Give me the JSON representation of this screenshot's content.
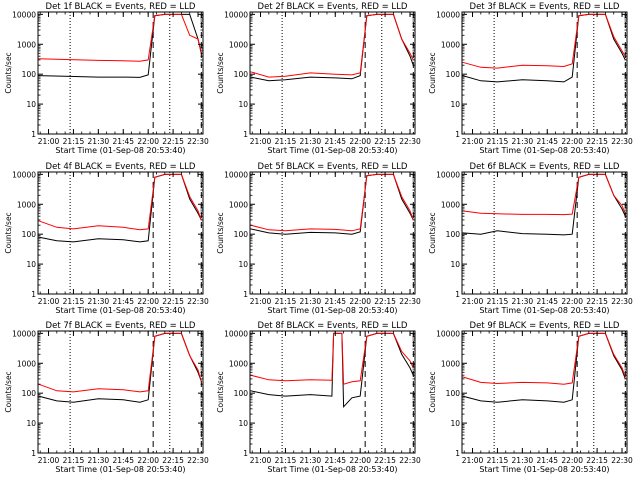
{
  "figure": {
    "colors": {
      "events": "#000000",
      "lld": "#ff0000",
      "axes": "#000000",
      "background": "#ffffff"
    }
  },
  "chart_data": [
    {
      "type": "line",
      "title": "Det 1f BLACK = Events, RED = LLD",
      "xlabel": "Start Time (01-Sep-08 20:53:40)",
      "ylabel": "Counts/sec",
      "x_tick_labels": [
        "21:00",
        "21:15",
        "21:30",
        "21:45",
        "22:00",
        "22:15",
        "22:30"
      ],
      "y_tick_labels": [
        "1",
        "10",
        "100",
        "1000",
        "10000"
      ],
      "y_scale": "log",
      "ylim": [
        1,
        12000
      ],
      "xlim": [
        "20:53:40",
        "22:33:00"
      ],
      "dotted_markers": [
        "21:13",
        "22:13"
      ],
      "dashed_markers": [
        "22:03",
        "22:32"
      ],
      "series": [
        {
          "name": "Events",
          "color": "#000000",
          "x": [
            "20:54",
            "21:10",
            "21:30",
            "21:45",
            "21:55",
            "22:00",
            "22:04",
            "22:10",
            "22:15",
            "22:20",
            "22:25",
            "22:30",
            "22:32"
          ],
          "y": [
            90,
            85,
            80,
            80,
            78,
            95,
            9000,
            10000,
            10000,
            10000,
            10000,
            1500,
            500
          ]
        },
        {
          "name": "LLD",
          "color": "#ff0000",
          "x": [
            "20:54",
            "21:10",
            "21:30",
            "21:45",
            "21:55",
            "22:00",
            "22:04",
            "22:10",
            "22:15",
            "22:20",
            "22:25",
            "22:30",
            "22:32"
          ],
          "y": [
            330,
            310,
            290,
            280,
            270,
            300,
            9000,
            10000,
            10000,
            10000,
            2000,
            1500,
            500
          ]
        }
      ]
    },
    {
      "type": "line",
      "title": "Det 2f BLACK = Events, RED = LLD",
      "xlabel": "Start Time (01-Sep-08 20:53:40)",
      "ylabel": "Counts/sec",
      "x_tick_labels": [
        "21:00",
        "21:15",
        "21:30",
        "21:45",
        "22:00",
        "22:15",
        "22:30"
      ],
      "y_tick_labels": [
        "1",
        "10",
        "100",
        "1000",
        "10000"
      ],
      "y_scale": "log",
      "ylim": [
        1,
        12000
      ],
      "xlim": [
        "20:53:40",
        "22:33:00"
      ],
      "dotted_markers": [
        "21:13",
        "22:13"
      ],
      "dashed_markers": [
        "22:03",
        "22:32"
      ],
      "series": [
        {
          "name": "Events",
          "color": "#000000",
          "x": [
            "20:54",
            "21:05",
            "21:15",
            "21:30",
            "21:45",
            "21:55",
            "22:00",
            "22:04",
            "22:10",
            "22:15",
            "22:20",
            "22:25",
            "22:30",
            "22:32"
          ],
          "y": [
            80,
            60,
            65,
            80,
            75,
            70,
            90,
            9000,
            10000,
            10000,
            10000,
            1500,
            400,
            200
          ]
        },
        {
          "name": "LLD",
          "color": "#ff0000",
          "x": [
            "20:54",
            "21:05",
            "21:15",
            "21:30",
            "21:45",
            "21:55",
            "22:00",
            "22:04",
            "22:10",
            "22:15",
            "22:20",
            "22:25",
            "22:30",
            "22:32"
          ],
          "y": [
            120,
            80,
            85,
            110,
            100,
            95,
            110,
            9000,
            10000,
            10000,
            10000,
            1500,
            500,
            300
          ]
        }
      ]
    },
    {
      "type": "line",
      "title": "Det 3f BLACK = Events, RED = LLD",
      "xlabel": "Start Time (01-Sep-08 20:53:40)",
      "ylabel": "Counts/sec",
      "x_tick_labels": [
        "21:00",
        "21:15",
        "21:30",
        "21:45",
        "22:00",
        "22:15",
        "22:30"
      ],
      "y_tick_labels": [
        "1",
        "10",
        "100",
        "1000",
        "10000"
      ],
      "y_scale": "log",
      "ylim": [
        1,
        12000
      ],
      "xlim": [
        "20:53:40",
        "22:33:00"
      ],
      "dotted_markers": [
        "21:13",
        "22:13"
      ],
      "dashed_markers": [
        "22:03",
        "22:32"
      ],
      "series": [
        {
          "name": "Events",
          "color": "#000000",
          "x": [
            "20:54",
            "21:05",
            "21:15",
            "21:30",
            "21:45",
            "21:55",
            "22:00",
            "22:04",
            "22:10",
            "22:15",
            "22:20",
            "22:25",
            "22:30",
            "22:32"
          ],
          "y": [
            90,
            60,
            55,
            65,
            60,
            55,
            80,
            9000,
            10000,
            10000,
            10000,
            1500,
            500,
            300
          ]
        },
        {
          "name": "LLD",
          "color": "#ff0000",
          "x": [
            "20:54",
            "21:05",
            "21:15",
            "21:30",
            "21:45",
            "21:55",
            "22:00",
            "22:04",
            "22:10",
            "22:15",
            "22:20",
            "22:25",
            "22:30",
            "22:32"
          ],
          "y": [
            250,
            170,
            160,
            200,
            190,
            180,
            220,
            9000,
            10000,
            10000,
            10000,
            1800,
            600,
            400
          ]
        }
      ]
    },
    {
      "type": "line",
      "title": "Det 4f BLACK = Events, RED = LLD",
      "xlabel": "Start Time (01-Sep-08 20:53:40)",
      "ylabel": "Counts/sec",
      "x_tick_labels": [
        "21:00",
        "21:15",
        "21:30",
        "21:45",
        "22:00",
        "22:15",
        "22:30"
      ],
      "y_tick_labels": [
        "1",
        "10",
        "100",
        "1000",
        "10000"
      ],
      "y_scale": "log",
      "ylim": [
        1,
        12000
      ],
      "xlim": [
        "20:53:40",
        "22:33:00"
      ],
      "dotted_markers": [
        "21:13",
        "22:13"
      ],
      "dashed_markers": [
        "22:03",
        "22:32"
      ],
      "series": [
        {
          "name": "Events",
          "color": "#000000",
          "x": [
            "20:54",
            "21:05",
            "21:15",
            "21:30",
            "21:45",
            "21:55",
            "22:00",
            "22:04",
            "22:10",
            "22:15",
            "22:20",
            "22:25",
            "22:30",
            "22:32"
          ],
          "y": [
            80,
            60,
            55,
            70,
            65,
            55,
            60,
            8000,
            10000,
            10000,
            10000,
            1500,
            500,
            300
          ]
        },
        {
          "name": "LLD",
          "color": "#ff0000",
          "x": [
            "20:54",
            "21:05",
            "21:15",
            "21:30",
            "21:45",
            "21:55",
            "22:00",
            "22:04",
            "22:10",
            "22:15",
            "22:20",
            "22:25",
            "22:30",
            "22:32"
          ],
          "y": [
            280,
            170,
            150,
            190,
            170,
            140,
            150,
            8000,
            10000,
            10000,
            10000,
            1800,
            600,
            300
          ]
        }
      ]
    },
    {
      "type": "line",
      "title": "Det 5f BLACK = Events, RED = LLD",
      "xlabel": "Start Time (01-Sep-08 20:53:40)",
      "ylabel": "Counts/sec",
      "x_tick_labels": [
        "21:00",
        "21:15",
        "21:30",
        "21:45",
        "22:00",
        "22:15",
        "22:30"
      ],
      "y_tick_labels": [
        "1",
        "10",
        "100",
        "1000",
        "10000"
      ],
      "y_scale": "log",
      "ylim": [
        1,
        12000
      ],
      "xlim": [
        "20:53:40",
        "22:33:00"
      ],
      "dotted_markers": [
        "21:13",
        "22:13"
      ],
      "dashed_markers": [
        "22:03",
        "22:32"
      ],
      "series": [
        {
          "name": "Events",
          "color": "#000000",
          "x": [
            "20:54",
            "21:05",
            "21:15",
            "21:30",
            "21:45",
            "21:55",
            "22:00",
            "22:04",
            "22:10",
            "22:15",
            "22:20",
            "22:25",
            "22:30",
            "22:32"
          ],
          "y": [
            150,
            110,
            100,
            115,
            110,
            100,
            120,
            9000,
            10000,
            10000,
            10000,
            1500,
            500,
            300
          ]
        },
        {
          "name": "LLD",
          "color": "#ff0000",
          "x": [
            "20:54",
            "21:05",
            "21:15",
            "21:30",
            "21:45",
            "21:55",
            "22:00",
            "22:04",
            "22:10",
            "22:15",
            "22:20",
            "22:25",
            "22:30",
            "22:32"
          ],
          "y": [
            200,
            140,
            130,
            150,
            145,
            130,
            150,
            9000,
            10000,
            10000,
            10000,
            1800,
            600,
            300
          ]
        }
      ]
    },
    {
      "type": "line",
      "title": "Det 6f BLACK = Events, RED = LLD",
      "xlabel": "Start Time (01-Sep-08 20:53:40)",
      "ylabel": "Counts/sec",
      "x_tick_labels": [
        "21:00",
        "21:15",
        "21:30",
        "21:45",
        "22:00",
        "22:15",
        "22:30"
      ],
      "y_tick_labels": [
        "1",
        "10",
        "100",
        "1000",
        "10000"
      ],
      "y_scale": "log",
      "ylim": [
        1,
        12000
      ],
      "xlim": [
        "20:53:40",
        "22:33:00"
      ],
      "dotted_markers": [
        "21:13",
        "22:13"
      ],
      "dashed_markers": [
        "22:03",
        "22:32"
      ],
      "series": [
        {
          "name": "Events",
          "color": "#000000",
          "x": [
            "20:54",
            "21:05",
            "21:15",
            "21:30",
            "21:45",
            "21:55",
            "22:00",
            "22:04",
            "22:10",
            "22:15",
            "22:20",
            "22:25",
            "22:30",
            "22:32"
          ],
          "y": [
            110,
            100,
            130,
            105,
            100,
            95,
            100,
            8000,
            10000,
            10000,
            10000,
            2000,
            700,
            400
          ]
        },
        {
          "name": "LLD",
          "color": "#ff0000",
          "x": [
            "20:54",
            "21:05",
            "21:15",
            "21:30",
            "21:45",
            "21:55",
            "22:00",
            "22:04",
            "22:10",
            "22:15",
            "22:20",
            "22:25",
            "22:30",
            "22:32"
          ],
          "y": [
            600,
            500,
            480,
            460,
            460,
            450,
            470,
            8000,
            10000,
            10000,
            10000,
            2000,
            900,
            500
          ]
        }
      ]
    },
    {
      "type": "line",
      "title": "Det 7f BLACK = Events, RED = LLD",
      "xlabel": "Start Time (01-Sep-08 20:53:40)",
      "ylabel": "Counts/sec",
      "x_tick_labels": [
        "21:00",
        "21:15",
        "21:30",
        "21:45",
        "22:00",
        "22:15",
        "22:30"
      ],
      "y_tick_labels": [
        "1",
        "10",
        "100",
        "1000",
        "10000"
      ],
      "y_scale": "log",
      "ylim": [
        1,
        12000
      ],
      "xlim": [
        "20:53:40",
        "22:33:00"
      ],
      "dotted_markers": [
        "21:13",
        "22:13"
      ],
      "dashed_markers": [
        "22:03",
        "22:32"
      ],
      "series": [
        {
          "name": "Events",
          "color": "#000000",
          "x": [
            "20:54",
            "21:05",
            "21:15",
            "21:30",
            "21:45",
            "21:55",
            "22:00",
            "22:04",
            "22:10",
            "22:15",
            "22:20",
            "22:25",
            "22:30",
            "22:32"
          ],
          "y": [
            80,
            55,
            50,
            65,
            60,
            50,
            60,
            8000,
            10000,
            10000,
            10000,
            1800,
            500,
            250
          ]
        },
        {
          "name": "LLD",
          "color": "#ff0000",
          "x": [
            "20:54",
            "21:05",
            "21:15",
            "21:30",
            "21:45",
            "21:55",
            "22:00",
            "22:04",
            "22:10",
            "22:15",
            "22:20",
            "22:25",
            "22:30",
            "22:32"
          ],
          "y": [
            200,
            120,
            110,
            140,
            130,
            110,
            120,
            8000,
            10000,
            10000,
            10000,
            1800,
            600,
            250
          ]
        }
      ]
    },
    {
      "type": "line",
      "title": "Det 8f BLACK = Events, RED = LLD",
      "xlabel": "Start Time (01-Sep-08 20:53:40)",
      "ylabel": "Counts/sec",
      "x_tick_labels": [
        "21:00",
        "21:15",
        "21:30",
        "21:45",
        "22:00",
        "22:15",
        "22:30"
      ],
      "y_tick_labels": [
        "1",
        "10",
        "100",
        "1000",
        "10000"
      ],
      "y_scale": "log",
      "ylim": [
        1,
        12000
      ],
      "xlim": [
        "20:53:40",
        "22:33:00"
      ],
      "dotted_markers": [
        "21:13",
        "22:13"
      ],
      "dashed_markers": [
        "22:03",
        "22:32"
      ],
      "series": [
        {
          "name": "Events",
          "color": "#000000",
          "x": [
            "20:54",
            "21:05",
            "21:15",
            "21:30",
            "21:43",
            "21:44",
            "21:49",
            "21:50",
            "21:55",
            "22:00",
            "22:04",
            "22:10",
            "22:15",
            "22:20",
            "22:25",
            "22:30",
            "22:32"
          ],
          "y": [
            120,
            90,
            80,
            90,
            80,
            10000,
            10000,
            35,
            70,
            80,
            8000,
            10000,
            10000,
            10000,
            2000,
            700,
            400
          ]
        },
        {
          "name": "LLD",
          "color": "#ff0000",
          "x": [
            "20:54",
            "21:05",
            "21:15",
            "21:30",
            "21:43",
            "21:44",
            "21:49",
            "21:50",
            "21:55",
            "22:00",
            "22:04",
            "22:10",
            "22:15",
            "22:20",
            "22:25",
            "22:30",
            "22:32"
          ],
          "y": [
            400,
            280,
            260,
            280,
            270,
            10000,
            10000,
            200,
            240,
            260,
            8000,
            10000,
            10000,
            10000,
            2500,
            1200,
            700
          ]
        }
      ]
    },
    {
      "type": "line",
      "title": "Det 9f BLACK = Events, RED = LLD",
      "xlabel": "Start Time (01-Sep-08 20:53:40)",
      "ylabel": "Counts/sec",
      "x_tick_labels": [
        "21:00",
        "21:15",
        "21:30",
        "21:45",
        "22:00",
        "22:15",
        "22:30"
      ],
      "y_tick_labels": [
        "1",
        "10",
        "100",
        "1000",
        "10000"
      ],
      "y_scale": "log",
      "ylim": [
        1,
        12000
      ],
      "xlim": [
        "20:53:40",
        "22:33:00"
      ],
      "dotted_markers": [
        "21:13",
        "22:13"
      ],
      "dashed_markers": [
        "22:03",
        "22:32"
      ],
      "series": [
        {
          "name": "Events",
          "color": "#000000",
          "x": [
            "20:54",
            "21:05",
            "21:15",
            "21:30",
            "21:45",
            "21:55",
            "22:00",
            "22:04",
            "22:10",
            "22:15",
            "22:20",
            "22:25",
            "22:30",
            "22:32"
          ],
          "y": [
            80,
            55,
            50,
            60,
            55,
            50,
            60,
            8000,
            10000,
            10000,
            10000,
            1800,
            600,
            300
          ]
        },
        {
          "name": "LLD",
          "color": "#ff0000",
          "x": [
            "20:54",
            "21:05",
            "21:15",
            "21:30",
            "21:45",
            "21:55",
            "22:00",
            "22:04",
            "22:10",
            "22:15",
            "22:20",
            "22:25",
            "22:30",
            "22:32"
          ],
          "y": [
            350,
            230,
            210,
            230,
            220,
            200,
            220,
            8000,
            10000,
            10000,
            10000,
            2000,
            700,
            350
          ]
        }
      ]
    }
  ]
}
